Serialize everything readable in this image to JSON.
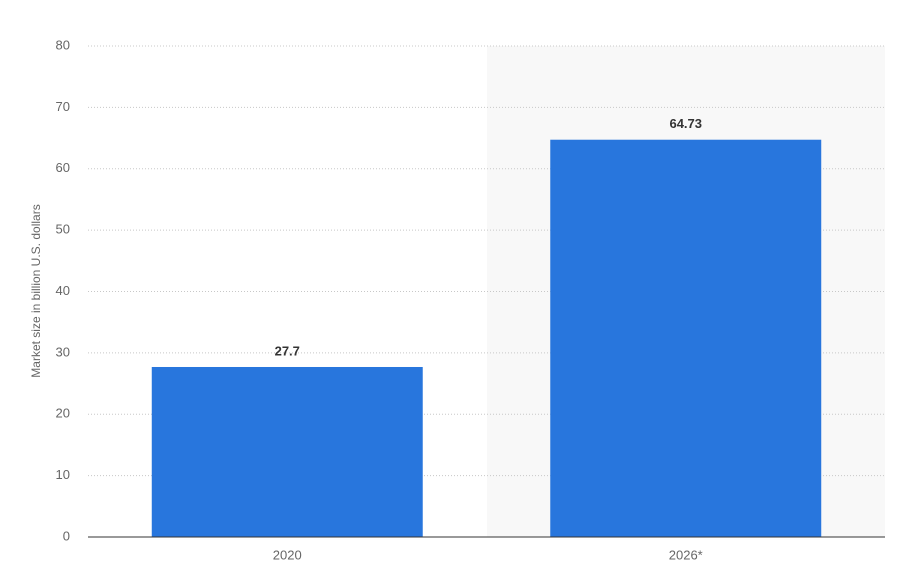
{
  "chart_data": {
    "type": "bar",
    "y_label": "Market size in billion U.S. dollars",
    "categories": [
      "2020",
      "2026*"
    ],
    "values": [
      27.7,
      64.73
    ],
    "color": "#2876dd",
    "ylim": [
      0,
      80
    ],
    "yticks": [
      0,
      10,
      20,
      30,
      40,
      50,
      60,
      70,
      80
    ],
    "grid": true
  }
}
